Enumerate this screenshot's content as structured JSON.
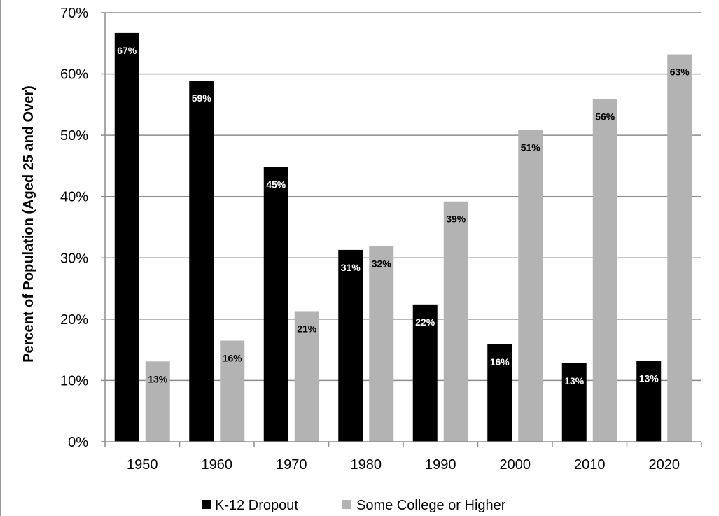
{
  "chart_data": {
    "type": "bar",
    "ylabel": "Percent of Population (Aged 25 and Over)",
    "xlabel": "",
    "ylim": [
      0,
      70
    ],
    "y_ticks": [
      "0%",
      "10%",
      "20%",
      "30%",
      "40%",
      "50%",
      "60%",
      "70%"
    ],
    "categories": [
      "1950",
      "1960",
      "1970",
      "1980",
      "1990",
      "2000",
      "2010",
      "2020"
    ],
    "grid": true,
    "legend_position": "bottom",
    "series": [
      {
        "name": "K-12 Dropout",
        "color": "#000000",
        "label_color": "#ffffff",
        "values": [
          66.7,
          58.9,
          44.8,
          31.3,
          22.4,
          15.9,
          12.8,
          13.2
        ],
        "labels": [
          "67%",
          "59%",
          "45%",
          "31%",
          "22%",
          "16%",
          "13%",
          "13%"
        ]
      },
      {
        "name": "Some College or Higher",
        "color": "#b3b3b3",
        "label_color": "#000000",
        "values": [
          13.1,
          16.5,
          21.3,
          31.9,
          39.2,
          50.9,
          55.9,
          63.2
        ],
        "labels": [
          "13%",
          "16%",
          "21%",
          "32%",
          "39%",
          "51%",
          "56%",
          "63%"
        ]
      }
    ]
  }
}
